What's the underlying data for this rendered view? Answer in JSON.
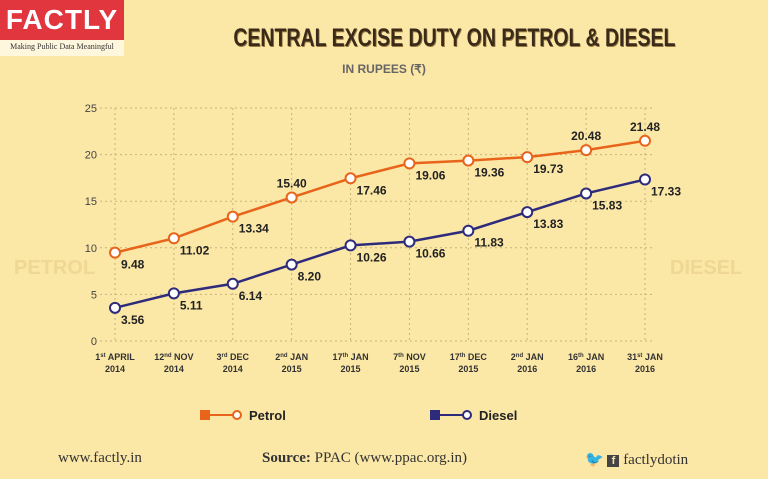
{
  "logo": {
    "name": "FACTLY",
    "tagline": "Making Public Data Meaningful"
  },
  "title": "CENTRAL EXCISE DUTY ON PETROL & DIESEL",
  "subtitle": "IN RUPEES (₹)",
  "background_text": {
    "left": "PETROL",
    "right": "DIESEL"
  },
  "chart_data": {
    "type": "line",
    "title": "CENTRAL EXCISE DUTY ON PETROL & DIESEL",
    "subtitle": "IN RUPEES (₹)",
    "ylim": [
      0,
      25
    ],
    "yticks": [
      0,
      5,
      10,
      15,
      20,
      25
    ],
    "grid": true,
    "legend_position": "bottom",
    "categories": [
      {
        "day": "1",
        "sup": "st",
        "month": "APRIL",
        "year": "2014"
      },
      {
        "day": "12",
        "sup": "nd",
        "month": "NOV",
        "year": "2014"
      },
      {
        "day": "3",
        "sup": "rd",
        "month": "DEC",
        "year": "2014"
      },
      {
        "day": "2",
        "sup": "nd",
        "month": "JAN",
        "year": "2015"
      },
      {
        "day": "17",
        "sup": "th",
        "month": "JAN",
        "year": "2015"
      },
      {
        "day": "7",
        "sup": "th",
        "month": "NOV",
        "year": "2015"
      },
      {
        "day": "17",
        "sup": "th",
        "month": "DEC",
        "year": "2015"
      },
      {
        "day": "2",
        "sup": "nd",
        "month": "JAN",
        "year": "2016"
      },
      {
        "day": "16",
        "sup": "th",
        "month": "JAN",
        "year": "2016"
      },
      {
        "day": "31",
        "sup": "st",
        "month": "JAN",
        "year": "2016"
      }
    ],
    "series": [
      {
        "name": "Petrol",
        "color": "#e8641b",
        "values": [
          9.48,
          11.02,
          13.34,
          15.4,
          17.46,
          19.06,
          19.36,
          19.73,
          20.48,
          21.48
        ]
      },
      {
        "name": "Diesel",
        "color": "#2e2b7c",
        "values": [
          3.56,
          5.11,
          6.14,
          8.2,
          10.26,
          10.66,
          11.83,
          13.83,
          15.83,
          17.33
        ]
      }
    ]
  },
  "footer": {
    "website": "www.factly.in",
    "source_label": "Source:",
    "source": "PPAC (www.ppac.org.in)",
    "social": "factlydotin"
  }
}
